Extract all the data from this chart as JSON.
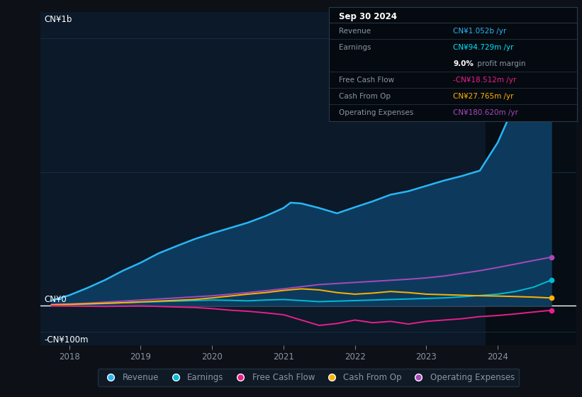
{
  "bg_color": "#0d1117",
  "plot_bg_color": "#0b1929",
  "plot_bg_highlight": "#060d14",
  "grid_color": "#1c2f45",
  "text_color": "#8b95a3",
  "title_color": "#ffffff",
  "ylabel_top": "CN¥1b",
  "ylabel_zero": "CN¥0",
  "ylabel_neg": "-CN¥100m",
  "x_ticks": [
    2018,
    2019,
    2020,
    2021,
    2022,
    2023,
    2024
  ],
  "x_min": 2017.6,
  "x_max": 2025.1,
  "y_min": -150,
  "y_max": 1100,
  "highlight_x_start": 2023.83,
  "series": {
    "Revenue": {
      "color": "#29b6f6",
      "fill_color": "#0d3a5c",
      "xs": [
        2017.75,
        2018.0,
        2018.25,
        2018.5,
        2018.75,
        2019.0,
        2019.25,
        2019.5,
        2019.75,
        2020.0,
        2020.25,
        2020.5,
        2020.75,
        2021.0,
        2021.1,
        2021.25,
        2021.5,
        2021.75,
        2022.0,
        2022.25,
        2022.5,
        2022.75,
        2023.0,
        2023.25,
        2023.5,
        2023.75,
        2024.0,
        2024.25,
        2024.5,
        2024.75
      ],
      "ys": [
        18,
        38,
        65,
        95,
        130,
        160,
        195,
        222,
        248,
        270,
        290,
        310,
        335,
        365,
        385,
        382,
        365,
        345,
        368,
        390,
        415,
        428,
        448,
        468,
        485,
        505,
        610,
        760,
        960,
        1052
      ]
    },
    "Earnings": {
      "color": "#00bcd4",
      "xs": [
        2017.75,
        2018.0,
        2018.25,
        2018.5,
        2018.75,
        2019.0,
        2019.25,
        2019.5,
        2019.75,
        2020.0,
        2020.25,
        2020.5,
        2020.75,
        2021.0,
        2021.25,
        2021.5,
        2021.75,
        2022.0,
        2022.25,
        2022.5,
        2022.75,
        2023.0,
        2023.25,
        2023.5,
        2023.75,
        2024.0,
        2024.25,
        2024.5,
        2024.75
      ],
      "ys": [
        1,
        3,
        5,
        7,
        10,
        12,
        14,
        16,
        18,
        20,
        19,
        17,
        20,
        22,
        18,
        14,
        16,
        18,
        20,
        22,
        24,
        26,
        28,
        32,
        37,
        42,
        52,
        68,
        94.729
      ]
    },
    "Free Cash Flow": {
      "color": "#e91e8c",
      "xs": [
        2017.75,
        2018.0,
        2018.25,
        2018.5,
        2018.75,
        2019.0,
        2019.25,
        2019.5,
        2019.75,
        2020.0,
        2020.25,
        2020.5,
        2020.75,
        2021.0,
        2021.25,
        2021.5,
        2021.75,
        2022.0,
        2022.25,
        2022.5,
        2022.75,
        2023.0,
        2023.25,
        2023.5,
        2023.75,
        2024.0,
        2024.25,
        2024.5,
        2024.75
      ],
      "ys": [
        -1,
        -2,
        -3,
        -4,
        -3,
        -2,
        -4,
        -6,
        -8,
        -12,
        -18,
        -22,
        -28,
        -35,
        -55,
        -75,
        -68,
        -55,
        -65,
        -60,
        -70,
        -60,
        -55,
        -50,
        -42,
        -38,
        -32,
        -25,
        -18.512
      ]
    },
    "Cash From Op": {
      "color": "#ffb300",
      "xs": [
        2017.75,
        2018.0,
        2018.25,
        2018.5,
        2018.75,
        2019.0,
        2019.25,
        2019.5,
        2019.75,
        2020.0,
        2020.25,
        2020.5,
        2020.75,
        2021.0,
        2021.25,
        2021.5,
        2021.75,
        2022.0,
        2022.25,
        2022.5,
        2022.75,
        2023.0,
        2023.25,
        2023.5,
        2023.75,
        2024.0,
        2024.25,
        2024.5,
        2024.75
      ],
      "ys": [
        2,
        4,
        6,
        8,
        10,
        13,
        16,
        19,
        22,
        28,
        35,
        42,
        48,
        56,
        62,
        58,
        48,
        42,
        46,
        52,
        48,
        42,
        40,
        38,
        36,
        35,
        33,
        31,
        27.765
      ]
    },
    "Operating Expenses": {
      "color": "#ab47bc",
      "xs": [
        2017.75,
        2018.0,
        2018.25,
        2018.5,
        2018.75,
        2019.0,
        2019.25,
        2019.5,
        2019.75,
        2020.0,
        2020.25,
        2020.5,
        2020.75,
        2021.0,
        2021.25,
        2021.5,
        2021.75,
        2022.0,
        2022.25,
        2022.5,
        2022.75,
        2023.0,
        2023.25,
        2023.5,
        2023.75,
        2024.0,
        2024.25,
        2024.5,
        2024.75
      ],
      "ys": [
        3,
        5,
        8,
        12,
        16,
        20,
        24,
        28,
        32,
        36,
        42,
        48,
        55,
        62,
        70,
        78,
        82,
        86,
        90,
        94,
        98,
        103,
        110,
        120,
        130,
        142,
        155,
        168,
        180.62
      ]
    }
  },
  "info_box": {
    "title": "Sep 30 2024",
    "title_color": "#ffffff",
    "bg_color": "#050a10",
    "border_color": "#2a3a4a",
    "rows": [
      {
        "label": "Revenue",
        "value": "CN¥1.052b /yr",
        "value_color": "#29b6f6"
      },
      {
        "label": "Earnings",
        "value": "CN¥94.729m /yr",
        "value_color": "#00e5ff"
      },
      {
        "label": "",
        "value": "9.0% profit margin",
        "value_color": "#9ca3af",
        "bold_part": "9.0%"
      },
      {
        "label": "Free Cash Flow",
        "value": "-CN¥18.512m /yr",
        "value_color": "#e91e8c"
      },
      {
        "label": "Cash From Op",
        "value": "CN¥27.765m /yr",
        "value_color": "#ffb300"
      },
      {
        "label": "Operating Expenses",
        "value": "CN¥180.620m /yr",
        "value_color": "#ab47bc"
      }
    ]
  },
  "legend": [
    {
      "label": "Revenue",
      "color": "#29b6f6"
    },
    {
      "label": "Earnings",
      "color": "#00bcd4"
    },
    {
      "label": "Free Cash Flow",
      "color": "#e91e8c"
    },
    {
      "label": "Cash From Op",
      "color": "#ffb300"
    },
    {
      "label": "Operating Expenses",
      "color": "#ab47bc"
    }
  ]
}
